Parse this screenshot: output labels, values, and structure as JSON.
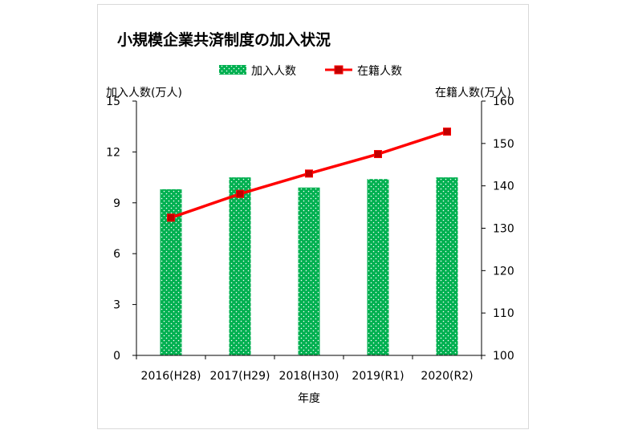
{
  "chart_data": {
    "type": "bar+line",
    "title": "小規模企業共済制度の加入状況",
    "xlabel": "年度",
    "ylabel_left": "加入人数(万人)",
    "ylabel_right": "在籍人数(万人)",
    "categories": [
      "2016(H28)",
      "2017(H29)",
      "2018(H30)",
      "2019(R1)",
      "2020(R2)"
    ],
    "y_left_lim": [
      0,
      15
    ],
    "y_left_ticks": [
      "0",
      "3",
      "6",
      "9",
      "12",
      "15"
    ],
    "y_right_lim": [
      100,
      160
    ],
    "y_right_ticks": [
      "100",
      "110",
      "120",
      "130",
      "140",
      "150",
      "160"
    ],
    "series": [
      {
        "name": "加入人数",
        "type": "bar",
        "axis": "left",
        "color": "#00b050",
        "values": [
          9.8,
          10.5,
          9.9,
          10.4,
          10.5
        ]
      },
      {
        "name": "在籍人数",
        "type": "line",
        "axis": "right",
        "color": "#ff0000",
        "values": [
          132.5,
          138.1,
          142.9,
          147.5,
          152.8
        ]
      }
    ],
    "grid": false,
    "legend_position": "top"
  }
}
